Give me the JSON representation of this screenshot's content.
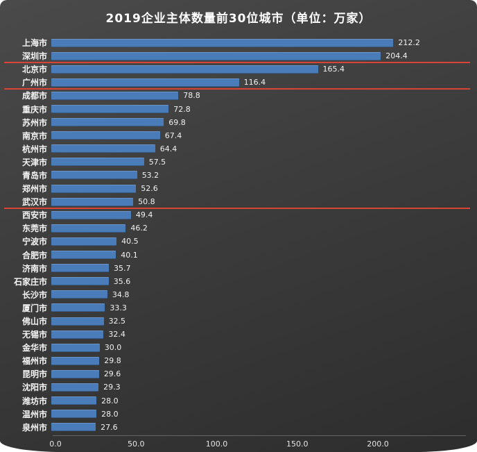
{
  "page": {
    "background_color": "#ffffff",
    "panel_color_top": "#4a4a4a",
    "panel_color_bottom": "#2d2d2d"
  },
  "chart_data": {
    "type": "bar",
    "orientation": "horizontal",
    "title": "2019企业主体数量前30位城市（单位：万家）",
    "unit": "万家",
    "categories": [
      "上海市",
      "深圳市",
      "北京市",
      "广州市",
      "成都市",
      "重庆市",
      "苏州市",
      "南京市",
      "杭州市",
      "天津市",
      "青岛市",
      "郑州市",
      "武汉市",
      "西安市",
      "东莞市",
      "宁波市",
      "合肥市",
      "济南市",
      "石家庄市",
      "长沙市",
      "厦门市",
      "佛山市",
      "无锡市",
      "金华市",
      "福州市",
      "昆明市",
      "沈阳市",
      "潍坊市",
      "温州市",
      "泉州市"
    ],
    "values": [
      212.2,
      204.4,
      165.4,
      116.4,
      78.8,
      72.8,
      69.8,
      67.4,
      64.4,
      57.5,
      53.2,
      52.6,
      50.8,
      49.4,
      46.2,
      40.5,
      40.1,
      35.7,
      35.6,
      34.8,
      33.3,
      32.5,
      32.4,
      30.0,
      29.8,
      29.6,
      29.3,
      28.0,
      28.0,
      27.6
    ],
    "value_labels": [
      "212.2",
      "204.4",
      "165.4",
      "116.4",
      "78.8",
      "72.8",
      "69.8",
      "67.4",
      "64.4",
      "57.5",
      "53.2",
      "52.6",
      "50.8",
      "49.4",
      "46.2",
      "40.5",
      "40.1",
      "35.7",
      "35.6",
      "34.8",
      "33.3",
      "32.5",
      "32.4",
      "30.0",
      "29.8",
      "29.6",
      "29.3",
      "28.0",
      "28.0",
      "27.6"
    ],
    "xlabel": "",
    "ylabel": "",
    "xlim": [
      0,
      247
    ],
    "xticks": {
      "values": [
        0,
        50,
        100,
        150,
        200
      ],
      "labels": [
        "0.0",
        "50.0",
        "100.0",
        "150.0",
        "200.0"
      ]
    },
    "grid": false,
    "legend": null,
    "bar_color": "#4a7cba",
    "category_label_color": "#f5f5f5",
    "value_label_color": "#f2f2f2",
    "tick_label_color": "#e6e6e6",
    "tier_separator_color": "#da4437",
    "tier_separators_after_rank": [
      2,
      4,
      13
    ]
  }
}
